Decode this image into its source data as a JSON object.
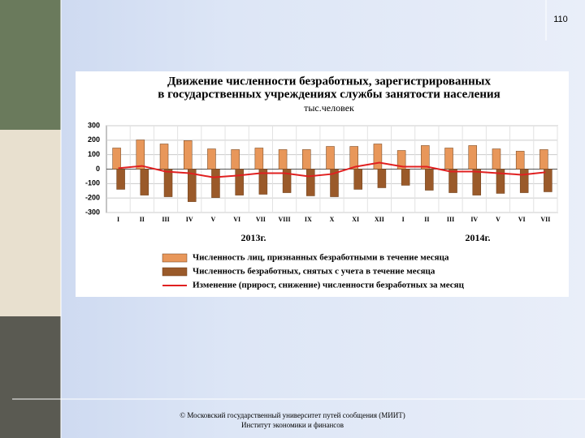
{
  "slide": {
    "page_number": "110",
    "footer": [
      "© Московский государственный университет путей сообщения (МИИТ)",
      "Институт экономики и финансов"
    ]
  },
  "chart_data": {
    "type": "bar",
    "title": [
      "Движение численности безработных, зарегистрированных",
      "в  государственных учреждениях службы занятости населения"
    ],
    "subtitle": "тыс.человек",
    "categories": [
      "I",
      "II",
      "III",
      "IV",
      "V",
      "VI",
      "VII",
      "VIII",
      "IX",
      "X",
      "XI",
      "XII",
      "I",
      "II",
      "III",
      "IV",
      "V",
      "VI",
      "VII"
    ],
    "period_labels": [
      "2013г.",
      "2014г."
    ],
    "ylim": [
      -300,
      300
    ],
    "yticks": [
      300,
      200,
      100,
      0,
      -100,
      -200,
      -300
    ],
    "grid": true,
    "series": [
      {
        "name": "Численность  лиц,  признанных  безработными в течение  месяца",
        "type": "bar",
        "color": "#e8975a",
        "values": [
          146,
          202,
          174,
          197,
          140,
          135,
          146,
          135,
          135,
          157,
          157,
          174,
          129,
          163,
          146,
          163,
          140,
          124,
          135
        ]
      },
      {
        "name": "Численность  безработных,  снятых с учета в течение  месяца",
        "type": "bar",
        "color": "#9a5a2a",
        "values": [
          -140,
          -180,
          -191,
          -225,
          -197,
          -180,
          -174,
          -163,
          -185,
          -191,
          -140,
          -129,
          -112,
          -146,
          -163,
          -180,
          -168,
          -163,
          -157
        ]
      },
      {
        "name": "Изменение (прирост, снижение)  численности  безработных за месяц",
        "type": "line",
        "color": "#e02020",
        "values": [
          6,
          22,
          -17,
          -28,
          -57,
          -45,
          -28,
          -28,
          -50,
          -34,
          17,
          45,
          17,
          17,
          -17,
          -17,
          -28,
          -39,
          -22
        ]
      }
    ]
  }
}
